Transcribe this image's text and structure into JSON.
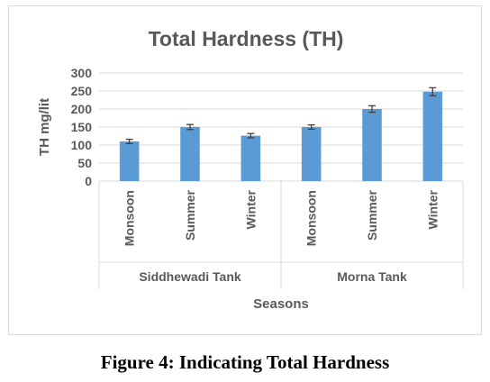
{
  "chart_data": {
    "type": "bar",
    "title": "Total Hardness (TH)",
    "xlabel": "Seasons",
    "ylabel": "TH mg/lit",
    "ylim": [
      0,
      300
    ],
    "yticks": [
      0,
      50,
      100,
      150,
      200,
      250,
      300
    ],
    "grid": true,
    "groups": [
      {
        "name": "Siddhewadi Tank",
        "categories": [
          "Monsoon",
          "Summer",
          "Winter"
        ]
      },
      {
        "name": "Morna Tank",
        "categories": [
          "Monsoon",
          "Summer",
          "Winter"
        ]
      }
    ],
    "values": [
      110,
      150,
      126,
      150,
      200,
      248
    ],
    "errors": [
      6,
      7,
      6,
      6,
      9,
      11
    ],
    "colors": {
      "bar": "#5b9bd5",
      "grid": "#d9d9d9",
      "text": "#595959",
      "error": "#404040"
    }
  },
  "caption": "Figure 4: Indicating Total Hardness"
}
